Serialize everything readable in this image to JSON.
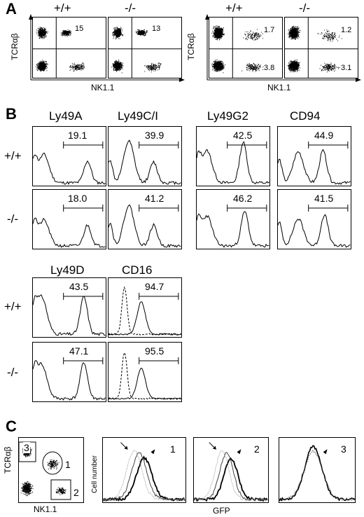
{
  "figure": {
    "panelA": {
      "label": "A",
      "groups": [
        {
          "genotypes": [
            "+/+",
            "-/-"
          ],
          "plots": [
            {
              "upper_right": "15",
              "lower_right": "6"
            },
            {
              "upper_right": "13",
              "lower_right": "7"
            }
          ]
        },
        {
          "genotypes": [
            "+/+",
            "-/-"
          ],
          "plots": [
            {
              "upper_right": "1.7",
              "lower_right": "3.8"
            },
            {
              "upper_right": "1.2",
              "lower_right": "3.1"
            }
          ]
        }
      ],
      "y_axis": "TCRαβ",
      "x_axis": "NK1.1"
    },
    "panelB": {
      "label": "B",
      "row_labels": [
        "+/+",
        "-/-"
      ],
      "markers_top": [
        {
          "name": "Ly49A",
          "wt": "19.1",
          "ko": "18.0"
        },
        {
          "name": "Ly49C/I",
          "wt": "39.9",
          "ko": "41.2"
        },
        {
          "name": "Ly49G2",
          "wt": "42.5",
          "ko": "46.2"
        },
        {
          "name": "CD94",
          "wt": "44.9",
          "ko": "41.5"
        }
      ],
      "markers_bottom": [
        {
          "name": "Ly49D",
          "wt": "43.5",
          "ko": "47.1"
        },
        {
          "name": "CD16",
          "wt": "94.7",
          "ko": "95.5"
        }
      ]
    },
    "panelC": {
      "label": "C",
      "dot_plot": {
        "y_axis": "TCRαβ",
        "x_axis": "NK1.1",
        "gates": [
          "3",
          "1",
          "2"
        ]
      },
      "histograms": {
        "y_axis": "Cell number",
        "x_axis": "GFP",
        "gate_labels": [
          "1",
          "2",
          "3"
        ]
      }
    }
  }
}
